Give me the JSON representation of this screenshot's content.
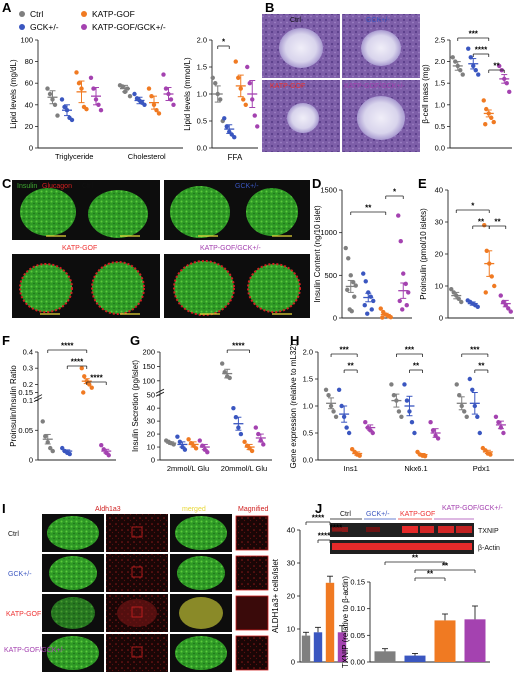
{
  "colors": {
    "ctrl": "#7f7f7f",
    "gck": "#3a56c0",
    "katp": "#f07a22",
    "combo": "#a442b0",
    "green": "#3fa832",
    "red": "#d02020",
    "darkbg": "#0d0d0d"
  },
  "panel_letters": [
    "A",
    "B",
    "C",
    "D",
    "E",
    "F",
    "G",
    "H",
    "I",
    "J"
  ],
  "legend": {
    "ctrl": "Ctrl",
    "gck": "GCK+/-",
    "katp": "KATP-GOF",
    "combo": "KATP-GOF/GCK+/-"
  },
  "panel_b": {
    "images": [
      "Ctrl",
      "GCK+/-",
      "KATP-GOF",
      "KATP-GOF/GCK+/-"
    ]
  },
  "panel_c": {
    "insulin": "Insulin",
    "glucagon": "Glucagon",
    "labels": [
      "Ctrl",
      "GCK+/-",
      "KATP-GOF",
      "KATP-GOF/GCK+/-"
    ]
  },
  "panel_i": {
    "cols": [
      "Aldh1a3",
      "merged",
      "Magnified"
    ],
    "rows": [
      "Ctrl",
      "GCK+/-",
      "KATP-GOF",
      "KATP-GOF/GCK+/-"
    ]
  },
  "panel_j": {
    "groups": [
      "Ctrl",
      "GCK+/-",
      "KATP-GOF",
      "KATP-GOF/GCK+/-"
    ],
    "bands": [
      "TXNIP",
      "β-Actin"
    ]
  },
  "sig": {
    "a2": [
      "*"
    ],
    "b": [
      "***",
      "****",
      "**"
    ],
    "d": [
      "**",
      "*"
    ],
    "e": [
      "*",
      "**",
      "**"
    ],
    "f": [
      "****",
      "****",
      "****"
    ],
    "g": [
      "****"
    ],
    "h": [
      "***",
      "**",
      "***",
      "**",
      "***",
      "**"
    ],
    "i": [
      "****",
      "****",
      "****"
    ],
    "j": [
      "**",
      "**",
      "**"
    ]
  },
  "chart_data": [
    {
      "id": "A1",
      "type": "scatter",
      "ylabel": "Lipid levels (mg/dL)",
      "ylim": [
        0,
        100
      ],
      "yticks": [
        0,
        20,
        40,
        60,
        80,
        100
      ],
      "categories": [
        "Triglyceride",
        "Cholesterol"
      ],
      "series": [
        {
          "name": "Ctrl",
          "means": [
            47,
            55
          ],
          "sem": [
            6,
            3
          ],
          "points": [
            [
              55,
              50,
              45,
              40,
              30
            ],
            [
              58,
              57,
              52,
              55,
              48
            ]
          ]
        },
        {
          "name": "GCK+/-",
          "means": [
            35,
            44
          ],
          "sem": [
            5,
            3
          ],
          "points": [
            [
              45,
              38,
              35,
              28,
              26
            ],
            [
              50,
              46,
              44,
              42,
              40
            ]
          ]
        },
        {
          "name": "KATP-GOF",
          "means": [
            52,
            42
          ],
          "sem": [
            10,
            6
          ],
          "points": [
            [
              70,
              60,
              55,
              38,
              36
            ],
            [
              55,
              48,
              40,
              35,
              32
            ]
          ]
        },
        {
          "name": "KATP-GOF/GCK+/-",
          "means": [
            48,
            50
          ],
          "sem": [
            8,
            6
          ],
          "points": [
            [
              65,
              55,
              45,
              40,
              35
            ],
            [
              68,
              55,
              50,
              45,
              40
            ]
          ]
        }
      ]
    },
    {
      "id": "A2",
      "type": "scatter",
      "ylabel": "Lipid levels (mmol/L)",
      "xlabel": "FFA",
      "ylim": [
        0,
        2.0
      ],
      "yticks": [
        0,
        0.5,
        1.0,
        1.5,
        2.0
      ],
      "series": [
        {
          "name": "Ctrl",
          "mean": 1.0,
          "sem": 0.15,
          "points": [
            1.3,
            1.2,
            1.0,
            0.9,
            0.5
          ]
        },
        {
          "name": "GCK+/-",
          "mean": 0.35,
          "sem": 0.08,
          "points": [
            0.55,
            0.4,
            0.3,
            0.25,
            0.2
          ]
        },
        {
          "name": "KATP-GOF",
          "mean": 1.15,
          "sem": 0.2,
          "points": [
            1.6,
            1.3,
            1.1,
            0.9,
            0.8
          ]
        },
        {
          "name": "KATP-GOF/GCK+/-",
          "mean": 1.0,
          "sem": 0.25,
          "points": [
            1.5,
            1.2,
            0.9,
            0.6,
            0.4
          ]
        }
      ]
    },
    {
      "id": "B",
      "type": "scatter",
      "ylabel": "β-cell mass (mg)",
      "ylim": [
        0,
        2.5
      ],
      "yticks": [
        0,
        0.5,
        1.0,
        1.5,
        2.0,
        2.5
      ],
      "series": [
        {
          "name": "Ctrl",
          "mean": 1.9,
          "sem": 0.1,
          "points": [
            2.1,
            2.0,
            1.9,
            1.8,
            1.7
          ]
        },
        {
          "name": "GCK+/-",
          "mean": 1.95,
          "sem": 0.12,
          "points": [
            2.3,
            2.1,
            1.9,
            1.8,
            1.7
          ]
        },
        {
          "name": "KATP-GOF",
          "mean": 0.8,
          "sem": 0.08,
          "points": [
            1.1,
            0.9,
            0.8,
            0.7,
            0.6,
            0.55
          ]
        },
        {
          "name": "KATP-GOF/GCK+/-",
          "mean": 1.6,
          "sem": 0.1,
          "points": [
            1.9,
            1.8,
            1.6,
            1.5,
            1.3
          ]
        }
      ]
    },
    {
      "id": "D",
      "type": "scatter",
      "ylabel": "Insulin Content (ng/10 islet)",
      "ylim": [
        0,
        1500
      ],
      "yticks": [
        0,
        500,
        1000,
        1500
      ],
      "series": [
        {
          "name": "Ctrl",
          "mean": 370,
          "sem": 70,
          "points": [
            820,
            700,
            500,
            420,
            380,
            330,
            250,
            100,
            80
          ]
        },
        {
          "name": "GCK+/-",
          "mean": 240,
          "sem": 50,
          "points": [
            520,
            430,
            300,
            250,
            200,
            150,
            100,
            50
          ]
        },
        {
          "name": "KATP-GOF",
          "mean": 40,
          "sem": 15,
          "points": [
            110,
            70,
            40,
            20,
            10,
            5
          ]
        },
        {
          "name": "KATP-GOF/GCK+/-",
          "mean": 320,
          "sem": 90,
          "points": [
            1200,
            900,
            520,
            400,
            300,
            200,
            150,
            100
          ]
        }
      ]
    },
    {
      "id": "E",
      "type": "scatter",
      "ylabel": "Proinsulin (pmol/10 islets)",
      "ylim": [
        0,
        40
      ],
      "yticks": [
        0,
        10,
        20,
        30,
        40
      ],
      "series": [
        {
          "name": "Ctrl",
          "mean": 7,
          "sem": 1,
          "points": [
            9,
            8,
            7,
            6,
            5
          ]
        },
        {
          "name": "GCK+/-",
          "mean": 4.5,
          "sem": 0.5,
          "points": [
            5.5,
            5,
            4.5,
            4,
            3.5
          ]
        },
        {
          "name": "KATP-GOF",
          "mean": 17,
          "sem": 4,
          "points": [
            29,
            21,
            17,
            13,
            10,
            8
          ]
        },
        {
          "name": "KATP-GOF/GCK+/-",
          "mean": 4.5,
          "sem": 1,
          "points": [
            7,
            5,
            4,
            3,
            2
          ]
        }
      ]
    },
    {
      "id": "F",
      "type": "scatter",
      "ylabel": "Proinsulin/Insulin Ratio",
      "ylim": [
        0,
        0.4
      ],
      "yticks": [
        0,
        0.05,
        0.1,
        0.15,
        0.2,
        0.3,
        0.4
      ],
      "series": [
        {
          "name": "Ctrl",
          "mean": 0.035,
          "sem": 0.008,
          "points": [
            0.065,
            0.04,
            0.03,
            0.02,
            0.015
          ]
        },
        {
          "name": "GCK+/-",
          "mean": 0.015,
          "sem": 0.002,
          "points": [
            0.02,
            0.015,
            0.012,
            0.01
          ]
        },
        {
          "name": "KATP-GOF",
          "mean": 0.22,
          "sem": 0.015,
          "points": [
            0.3,
            0.25,
            0.22,
            0.2,
            0.18,
            0.15
          ]
        },
        {
          "name": "KATP-GOF/GCK+/-",
          "mean": 0.015,
          "sem": 0.003,
          "points": [
            0.025,
            0.018,
            0.012,
            0.008
          ]
        }
      ]
    },
    {
      "id": "G",
      "type": "scatter",
      "ylabel": "Insulin Secretion (pg/islet)",
      "categories": [
        "2mmol/L Glu",
        "20mmol/L Glu"
      ],
      "ylim": [
        0,
        200
      ],
      "yticks": [
        0,
        10,
        20,
        30,
        40,
        50,
        100,
        150,
        200
      ],
      "series": [
        {
          "name": "Ctrl",
          "means": [
            13,
            125
          ],
          "sem": [
            1,
            15
          ],
          "points": [
            [
              15,
              14,
              13,
              12
            ],
            [
              160,
              130,
              115,
              110
            ]
          ]
        },
        {
          "name": "GCK+/-",
          "means": [
            12,
            28
          ],
          "sem": [
            2,
            5
          ],
          "points": [
            [
              18,
              14,
              10,
              8
            ],
            [
              40,
              33,
              25,
              20
            ]
          ]
        },
        {
          "name": "KATP-GOF",
          "means": [
            12,
            10
          ],
          "sem": [
            2,
            2
          ],
          "points": [
            [
              16,
              13,
              11,
              9
            ],
            [
              14,
              11,
              9,
              7
            ]
          ]
        },
        {
          "name": "KATP-GOF/GCK+/-",
          "means": [
            10,
            17
          ],
          "sem": [
            2,
            3
          ],
          "points": [
            [
              15,
              11,
              8,
              6
            ],
            [
              25,
              20,
              15,
              12
            ]
          ]
        }
      ]
    },
    {
      "id": "H",
      "type": "scatter",
      "ylabel": "Gene expression (relative to mL32)",
      "categories": [
        "Ins1",
        "Nkx6.1",
        "Pdx1"
      ],
      "ylim": [
        0,
        2.0
      ],
      "yticks": [
        0,
        0.5,
        1.0,
        1.5,
        2.0
      ],
      "series": [
        {
          "name": "Ctrl",
          "means": [
            1.05,
            1.1,
            1.05
          ],
          "sem": [
            0.1,
            0.12,
            0.12
          ],
          "points": [
            [
              1.3,
              1.2,
              1.0,
              0.9,
              0.8
            ],
            [
              1.4,
              1.2,
              1.1,
              0.9,
              0.8
            ],
            [
              1.4,
              1.2,
              1.0,
              0.9,
              0.8
            ]
          ]
        },
        {
          "name": "GCK+/-",
          "means": [
            0.85,
            1.0,
            1.05
          ],
          "sem": [
            0.15,
            0.18,
            0.2
          ],
          "points": [
            [
              1.3,
              1.0,
              0.8,
              0.6,
              0.5
            ],
            [
              1.4,
              1.1,
              0.9,
              0.7,
              0.5
            ],
            [
              1.5,
              1.3,
              1.0,
              0.8,
              0.5
            ]
          ]
        },
        {
          "name": "KATP-GOF",
          "means": [
            0.12,
            0.1,
            0.15
          ],
          "sem": [
            0.03,
            0.02,
            0.03
          ],
          "points": [
            [
              0.2,
              0.15,
              0.1,
              0.08
            ],
            [
              0.15,
              0.1,
              0.08,
              0.07
            ],
            [
              0.22,
              0.18,
              0.12,
              0.1
            ]
          ]
        },
        {
          "name": "KATP-GOF/GCK+/-",
          "means": [
            0.6,
            0.5,
            0.65
          ],
          "sem": [
            0.05,
            0.08,
            0.07
          ],
          "points": [
            [
              0.7,
              0.6,
              0.55,
              0.5
            ],
            [
              0.7,
              0.55,
              0.45,
              0.4
            ],
            [
              0.8,
              0.7,
              0.6,
              0.5
            ]
          ]
        }
      ]
    },
    {
      "id": "I",
      "type": "bar",
      "ylabel": "ALDH1a3+ cells/islet",
      "ylim": [
        0,
        40
      ],
      "yticks": [
        0,
        10,
        20,
        30,
        40
      ],
      "series": [
        {
          "name": "Ctrl",
          "value": 8,
          "sem": 1
        },
        {
          "name": "GCK+/-",
          "value": 9,
          "sem": 1.5
        },
        {
          "name": "KATP-GOF",
          "value": 24,
          "sem": 2
        },
        {
          "name": "KATP-GOF/GCK+/-",
          "value": 9,
          "sem": 2
        }
      ]
    },
    {
      "id": "J",
      "type": "bar",
      "ylabel": "TXNIP (relative to β-actin)",
      "ylim": [
        0,
        0.15
      ],
      "yticks": [
        0,
        0.05,
        0.1,
        0.15
      ],
      "series": [
        {
          "name": "Ctrl",
          "value": 0.02,
          "sem": 0.005
        },
        {
          "name": "GCK+/-",
          "value": 0.012,
          "sem": 0.004
        },
        {
          "name": "KATP-GOF",
          "value": 0.078,
          "sem": 0.012
        },
        {
          "name": "KATP-GOF/GCK+/-",
          "value": 0.08,
          "sem": 0.025
        }
      ]
    }
  ]
}
